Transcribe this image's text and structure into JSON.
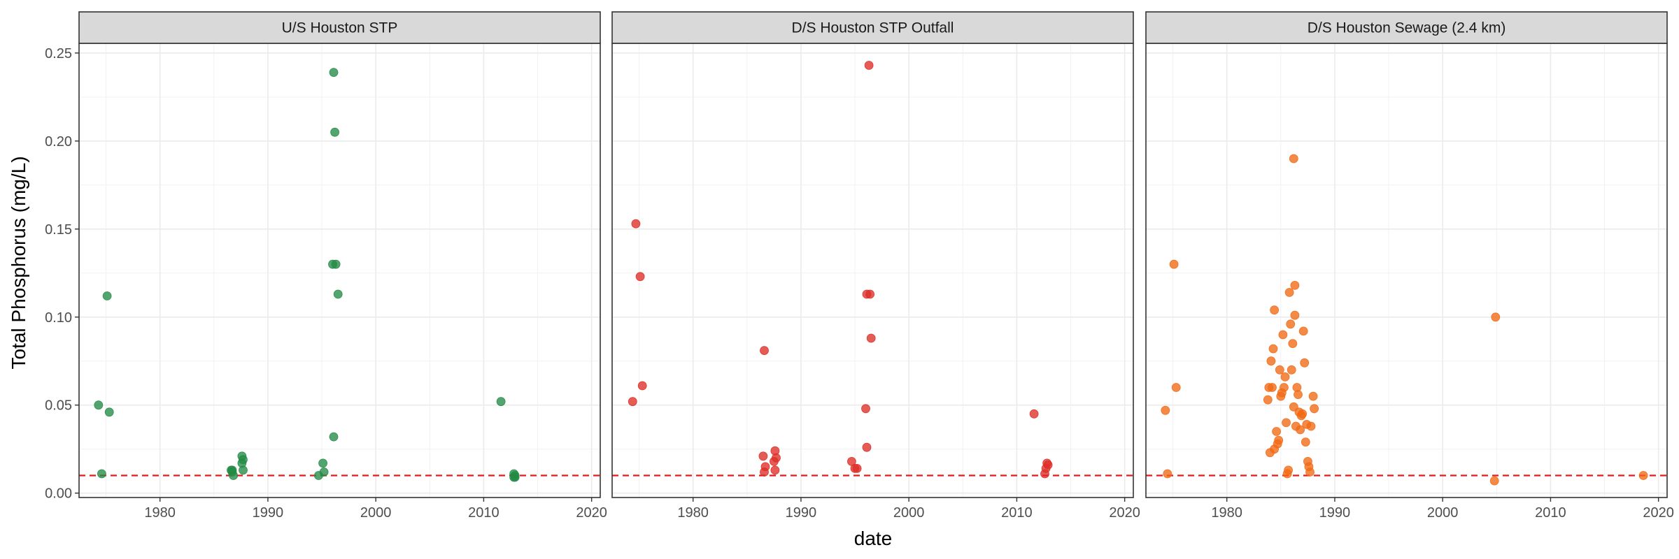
{
  "chart_data": {
    "type": "scatter",
    "xlabel": "date",
    "ylabel": "Total Phosphorus (mg/L)",
    "xlim": [
      1972.5,
      2020.8
    ],
    "ylim": [
      -0.0025,
      0.2555
    ],
    "x_ticks": [
      1980,
      1990,
      2000,
      2010,
      2020
    ],
    "y_ticks": [
      0.0,
      0.05,
      0.1,
      0.15,
      0.2,
      0.25
    ],
    "y_tick_labels": [
      "0.00",
      "0.05",
      "0.10",
      "0.15",
      "0.20",
      "0.25"
    ],
    "reference_line": {
      "y": 0.01,
      "color": "#e41a1c",
      "style": "dashed"
    },
    "grid": true,
    "panels": [
      {
        "name": "U/S Houston STP",
        "color": "#238b45",
        "points": [
          [
            1974.3,
            0.05
          ],
          [
            1974.6,
            0.011
          ],
          [
            1975.1,
            0.112
          ],
          [
            1975.3,
            0.046
          ],
          [
            1986.6,
            0.013
          ],
          [
            1986.7,
            0.012
          ],
          [
            1986.8,
            0.01
          ],
          [
            1986.7,
            0.013
          ],
          [
            1987.6,
            0.021
          ],
          [
            1987.7,
            0.019
          ],
          [
            1987.6,
            0.017
          ],
          [
            1987.7,
            0.013
          ],
          [
            1994.7,
            0.01
          ],
          [
            1995.2,
            0.012
          ],
          [
            1995.1,
            0.017
          ],
          [
            1996.1,
            0.032
          ],
          [
            1996.0,
            0.13
          ],
          [
            1996.3,
            0.13
          ],
          [
            1996.5,
            0.113
          ],
          [
            1996.2,
            0.205
          ],
          [
            1996.1,
            0.239
          ],
          [
            2011.6,
            0.052
          ],
          [
            2012.8,
            0.011
          ],
          [
            2012.9,
            0.01
          ],
          [
            2012.8,
            0.009
          ],
          [
            2012.9,
            0.009
          ]
        ]
      },
      {
        "name": "D/S Houston STP Outfall",
        "color": "#de2d26",
        "points": [
          [
            1974.4,
            0.052
          ],
          [
            1974.7,
            0.153
          ],
          [
            1975.1,
            0.123
          ],
          [
            1975.3,
            0.061
          ],
          [
            1986.6,
            0.081
          ],
          [
            1986.5,
            0.021
          ],
          [
            1986.7,
            0.015
          ],
          [
            1986.6,
            0.012
          ],
          [
            1987.6,
            0.024
          ],
          [
            1987.7,
            0.02
          ],
          [
            1987.5,
            0.018
          ],
          [
            1987.6,
            0.013
          ],
          [
            1994.7,
            0.018
          ],
          [
            1995.0,
            0.014
          ],
          [
            1995.2,
            0.014
          ],
          [
            1996.0,
            0.048
          ],
          [
            1996.1,
            0.026
          ],
          [
            1996.1,
            0.113
          ],
          [
            1996.4,
            0.113
          ],
          [
            1996.5,
            0.088
          ],
          [
            1996.3,
            0.243
          ],
          [
            2011.6,
            0.045
          ],
          [
            2012.8,
            0.017
          ],
          [
            2012.9,
            0.016
          ],
          [
            2012.7,
            0.014
          ],
          [
            2012.6,
            0.011
          ]
        ]
      },
      {
        "name": "D/S Houston Sewage (2.4 km)",
        "color": "#f16913",
        "points": [
          [
            1974.3,
            0.047
          ],
          [
            1974.5,
            0.011
          ],
          [
            1975.1,
            0.13
          ],
          [
            1975.3,
            0.06
          ],
          [
            1983.8,
            0.053
          ],
          [
            1983.9,
            0.06
          ],
          [
            1984.0,
            0.023
          ],
          [
            1984.1,
            0.075
          ],
          [
            1984.2,
            0.06
          ],
          [
            1984.3,
            0.082
          ],
          [
            1984.4,
            0.104
          ],
          [
            1984.4,
            0.025
          ],
          [
            1984.6,
            0.035
          ],
          [
            1984.7,
            0.028
          ],
          [
            1984.8,
            0.03
          ],
          [
            1984.9,
            0.07
          ],
          [
            1985.0,
            0.055
          ],
          [
            1985.1,
            0.057
          ],
          [
            1985.2,
            0.09
          ],
          [
            1985.3,
            0.06
          ],
          [
            1985.4,
            0.066
          ],
          [
            1985.5,
            0.04
          ],
          [
            1985.6,
            0.011
          ],
          [
            1985.7,
            0.013
          ],
          [
            1985.8,
            0.114
          ],
          [
            1985.9,
            0.096
          ],
          [
            1986.0,
            0.07
          ],
          [
            1986.1,
            0.085
          ],
          [
            1986.2,
            0.049
          ],
          [
            1986.3,
            0.118
          ],
          [
            1986.3,
            0.101
          ],
          [
            1986.4,
            0.038
          ],
          [
            1986.5,
            0.06
          ],
          [
            1986.6,
            0.056
          ],
          [
            1986.7,
            0.046
          ],
          [
            1986.8,
            0.036
          ],
          [
            1986.9,
            0.044
          ],
          [
            1987.0,
            0.045
          ],
          [
            1987.1,
            0.092
          ],
          [
            1987.2,
            0.074
          ],
          [
            1987.3,
            0.029
          ],
          [
            1987.4,
            0.039
          ],
          [
            1987.5,
            0.018
          ],
          [
            1987.6,
            0.015
          ],
          [
            1987.7,
            0.012
          ],
          [
            1987.8,
            0.038
          ],
          [
            1988.0,
            0.055
          ],
          [
            1988.1,
            0.048
          ],
          [
            1986.2,
            0.19
          ],
          [
            2004.9,
            0.1
          ],
          [
            2004.8,
            0.007
          ],
          [
            2018.6,
            0.01
          ]
        ]
      }
    ]
  }
}
